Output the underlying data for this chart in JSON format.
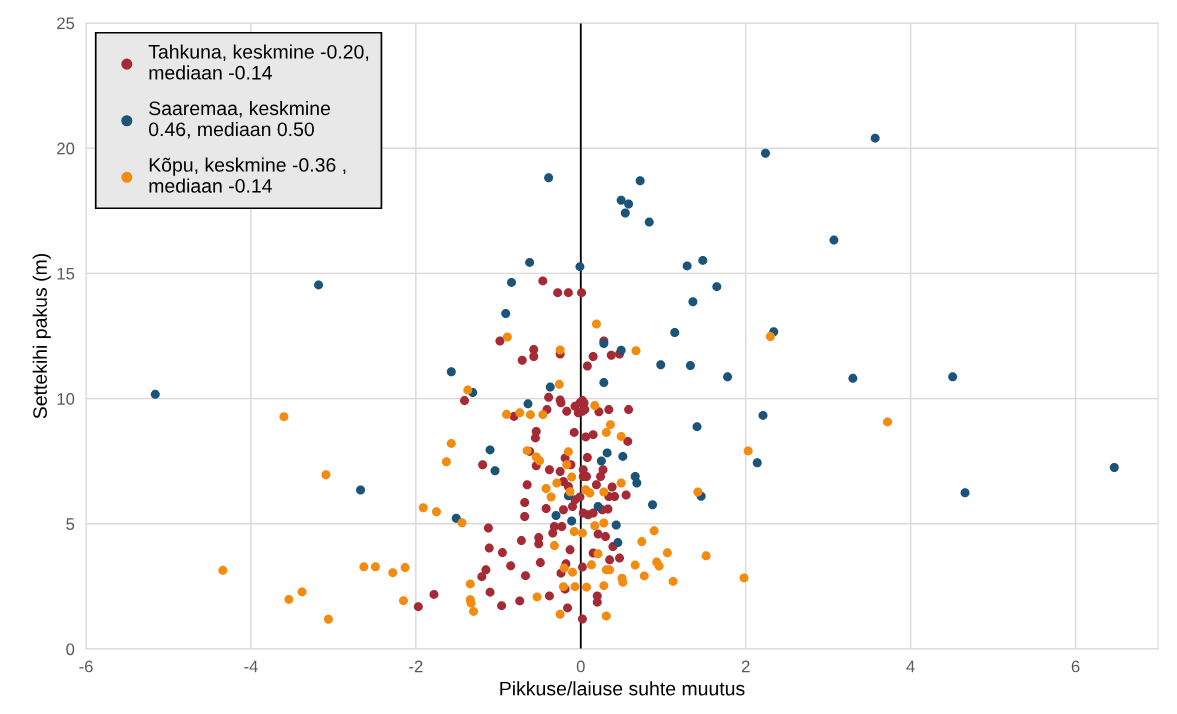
{
  "chart_data": {
    "type": "scatter",
    "xlabel": "Pikkuse/laiuse suhte muutus",
    "ylabel": "Settekihi pakus (m)",
    "xlim": [
      -6,
      7
    ],
    "xticks": [
      -6,
      -4,
      -2,
      0,
      2,
      4,
      6
    ],
    "ylim": [
      0,
      25
    ],
    "yticks": [
      0,
      5,
      10,
      15,
      20,
      25
    ],
    "grid": true,
    "legend": "top left",
    "marker": "circle",
    "ref_lines": [
      {
        "axis": "x",
        "value": 0,
        "color": "#000000"
      }
    ],
    "series": [
      {
        "name": "Tahkuna, keskmine -0.20,\nmediaan -0.14",
        "color": "#a52a36",
        "x": [
          -1.97,
          -1.78,
          -1.41,
          -0.46,
          -0.28,
          -0.15,
          0.01,
          -0.98,
          -0.57,
          -0.57,
          -0.71,
          -0.25,
          0.15,
          0.37,
          0.47,
          0.28,
          0.08,
          -0.39,
          -0.25,
          0.02,
          -0.24,
          -0.17,
          -0.07,
          -0.01,
          0.04,
          0.02,
          -0.03,
          0.05,
          -0.41,
          -0.81,
          0.22,
          0.34,
          0.58,
          -0.54,
          -0.55,
          -0.08,
          0.06,
          0.15,
          0.57,
          -1.19,
          -0.62,
          -0.54,
          -0.38,
          -0.19,
          -0.12,
          0.03,
          0.08,
          0.27,
          0.24,
          -0.65,
          -0.25,
          -0.21,
          -0.15,
          0.03,
          0.07,
          0.19,
          0.38,
          0.34,
          0.41,
          0.55,
          -0.68,
          -0.42,
          -0.21,
          -0.1,
          -0.07,
          -0.01,
          0.03,
          0.09,
          0.15,
          0.26,
          0.33,
          -0.68,
          -0.32,
          -0.34,
          -0.23,
          -1.12,
          -0.72,
          -0.51,
          -0.51,
          0.21,
          0.3,
          -1.11,
          -0.95,
          -0.13,
          0.39,
          0.15,
          0.35,
          0.47,
          -0.85,
          -0.49,
          -0.18,
          0.02,
          -1.15,
          -1.2,
          -0.67,
          -0.24,
          -1.1,
          -0.38,
          -0.19,
          0.2,
          0.2,
          -0.96,
          -0.74,
          -0.16,
          0.02
        ],
        "values": [
          1.69,
          2.18,
          9.92,
          14.7,
          14.23,
          14.23,
          14.23,
          12.3,
          11.96,
          11.68,
          11.53,
          11.78,
          11.68,
          11.73,
          11.78,
          12.3,
          11.3,
          10.05,
          9.94,
          9.92,
          9.83,
          9.49,
          9.69,
          9.83,
          9.83,
          9.49,
          9.43,
          9.56,
          9.56,
          9.29,
          9.47,
          9.56,
          9.56,
          8.69,
          8.43,
          8.65,
          8.47,
          8.56,
          8.29,
          7.36,
          7.89,
          7.32,
          7.16,
          7.63,
          7.36,
          7.16,
          7.65,
          7.16,
          6.89,
          6.56,
          7.09,
          6.69,
          6.49,
          6.89,
          6.89,
          6.56,
          6.47,
          6.09,
          6.09,
          6.15,
          5.85,
          5.61,
          5.56,
          5.69,
          5.96,
          6.07,
          5.43,
          5.36,
          5.43,
          5.56,
          5.59,
          5.29,
          4.89,
          4.63,
          4.89,
          4.83,
          4.33,
          4.2,
          4.45,
          4.59,
          4.49,
          4.03,
          3.85,
          3.96,
          4.09,
          3.83,
          3.56,
          3.63,
          3.32,
          3.45,
          3.4,
          3.27,
          3.16,
          2.89,
          2.93,
          3.03,
          2.27,
          2.12,
          2.39,
          2.12,
          1.87,
          1.73,
          1.92,
          1.64,
          1.2
        ]
      },
      {
        "name": "Saaremaa, keskmine\n0.46, mediaan 0.50",
        "color": "#1b5478",
        "x": [
          -5.16,
          -3.18,
          -2.67,
          -1.57,
          -1.31,
          -1.51,
          3.57,
          2.24,
          0.72,
          0.83,
          3.07,
          1.29,
          1.48,
          1.65,
          1.36,
          1.14,
          2.34,
          0.97,
          1.33,
          1.78,
          3.3,
          4.51,
          2.21,
          1.41,
          2.14,
          6.47,
          4.66,
          1.46,
          0.87,
          -0.39,
          0.49,
          0.58,
          0.54,
          -0.62,
          -0.01,
          -0.84,
          -0.91,
          0.28,
          0.49,
          -0.37,
          0.28,
          -0.64,
          -1.1,
          -1.04,
          0.32,
          0.25,
          0.51,
          0.66,
          0.68,
          -0.15,
          0.21,
          -0.3,
          -0.11,
          0.43,
          0.45
        ],
        "values": [
          10.17,
          14.54,
          6.35,
          11.07,
          10.24,
          5.22,
          20.4,
          19.8,
          18.7,
          17.05,
          16.33,
          15.3,
          15.52,
          14.47,
          13.87,
          12.64,
          12.67,
          11.35,
          11.32,
          10.87,
          10.81,
          10.87,
          9.33,
          8.88,
          7.44,
          7.25,
          6.24,
          6.1,
          5.76,
          18.82,
          17.92,
          17.77,
          17.41,
          15.44,
          15.27,
          14.64,
          13.4,
          12.2,
          11.93,
          10.46,
          10.64,
          9.79,
          7.95,
          7.12,
          7.83,
          7.51,
          7.69,
          6.89,
          6.63,
          6.12,
          5.69,
          5.33,
          5.11,
          4.95,
          4.25
        ]
      },
      {
        "name": "Kõpu, keskmine -0.36 ,\nmediaan -0.14",
        "color": "#f28c10",
        "x": [
          -3.6,
          -3.09,
          -4.34,
          -3.54,
          -3.38,
          -3.06,
          -2.63,
          -2.49,
          -2.28,
          -2.13,
          -2.15,
          -1.91,
          -1.75,
          -1.44,
          -1.57,
          -1.63,
          -1.37,
          -1.34,
          -1.34,
          -1.33,
          -1.3,
          2.3,
          3.72,
          2.03,
          1.42,
          0.89,
          0.74,
          1.05,
          1.52,
          0.92,
          0.95,
          0.77,
          1.12,
          1.98,
          -0.89,
          -0.25,
          0.19,
          0.67,
          -0.26,
          -0.9,
          -0.74,
          -0.61,
          -0.46,
          0.17,
          0.36,
          0.31,
          0.49,
          -0.65,
          -0.54,
          -0.5,
          -0.15,
          -0.17,
          -0.11,
          -0.29,
          -0.42,
          -0.36,
          -0.13,
          0.06,
          0.11,
          0.28,
          0.49,
          -0.08,
          0.02,
          0.17,
          0.28,
          -0.32,
          0.21,
          0.13,
          -0.2,
          -0.1,
          0.31,
          0.35,
          0.5,
          0.51,
          0.66,
          -0.53,
          -0.21,
          -0.07,
          0.07,
          0.28,
          -0.25,
          0.31
        ],
        "values": [
          9.28,
          6.96,
          3.14,
          1.98,
          2.28,
          1.19,
          3.28,
          3.28,
          3.05,
          3.25,
          1.93,
          5.64,
          5.48,
          5.04,
          8.21,
          7.48,
          10.34,
          2.6,
          1.97,
          1.83,
          1.5,
          12.48,
          9.07,
          7.91,
          6.27,
          4.72,
          4.29,
          3.84,
          3.72,
          3.47,
          3.31,
          2.92,
          2.7,
          2.84,
          12.46,
          11.94,
          12.98,
          11.91,
          10.57,
          9.37,
          9.43,
          9.36,
          9.36,
          9.72,
          8.96,
          8.65,
          8.49,
          7.92,
          7.67,
          7.52,
          7.88,
          7.36,
          6.87,
          6.63,
          6.41,
          6.07,
          6.28,
          6.36,
          6.23,
          6.27,
          6.63,
          4.69,
          4.63,
          4.92,
          5.03,
          4.13,
          3.8,
          3.36,
          3.23,
          3.07,
          3.16,
          3.16,
          2.83,
          2.67,
          3.35,
          2.08,
          2.49,
          2.49,
          2.47,
          2.53,
          1.39,
          1.32
        ]
      }
    ]
  }
}
